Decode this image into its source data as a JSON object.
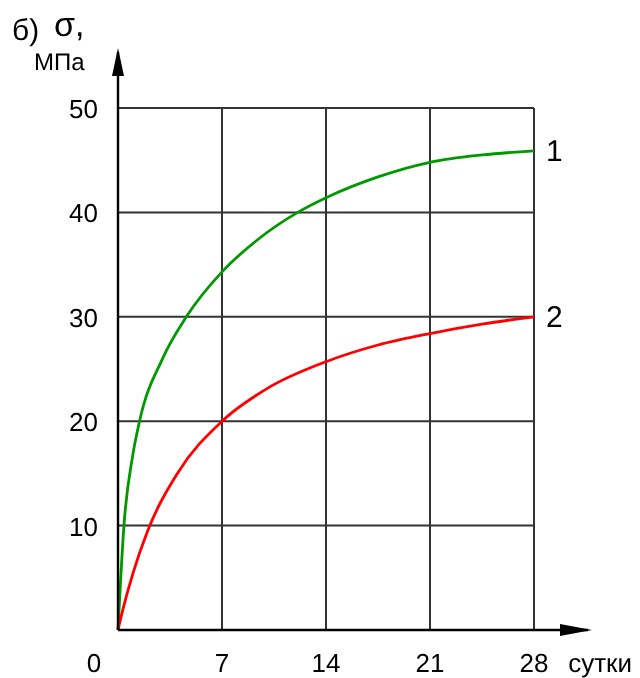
{
  "chart_data": {
    "type": "line",
    "title": "б)",
    "ylabel": "σ,\nМПа",
    "xlabel": "сутки",
    "xlim": [
      0,
      28
    ],
    "xticks": [
      0,
      7,
      14,
      21,
      28
    ],
    "ylim": [
      0,
      50
    ],
    "yticks": [
      10,
      20,
      30,
      40,
      50
    ],
    "grid": true,
    "marker": "none",
    "line_style": "solid",
    "series": [
      {
        "name": "1",
        "color": "#009900",
        "x": [
          0,
          0.4,
          1,
          1.45,
          3,
          4.6,
          7,
          9.5,
          12.1,
          14,
          17.5,
          21,
          24.5,
          28
        ],
        "values": [
          0,
          10,
          16.8,
          20,
          26,
          30,
          34.3,
          37.5,
          40,
          41.4,
          43.4,
          44.8,
          45.5,
          45.9
        ]
      },
      {
        "name": "2",
        "color": "#ff0000",
        "x": [
          0,
          0.3,
          1,
          2,
          4,
          7,
          10,
          14,
          17.5,
          21,
          24.5,
          28
        ],
        "values": [
          0,
          1.8,
          5.4,
          9.5,
          15,
          20,
          23.1,
          25.7,
          27.3,
          28.4,
          29.3,
          30
        ]
      }
    ]
  }
}
